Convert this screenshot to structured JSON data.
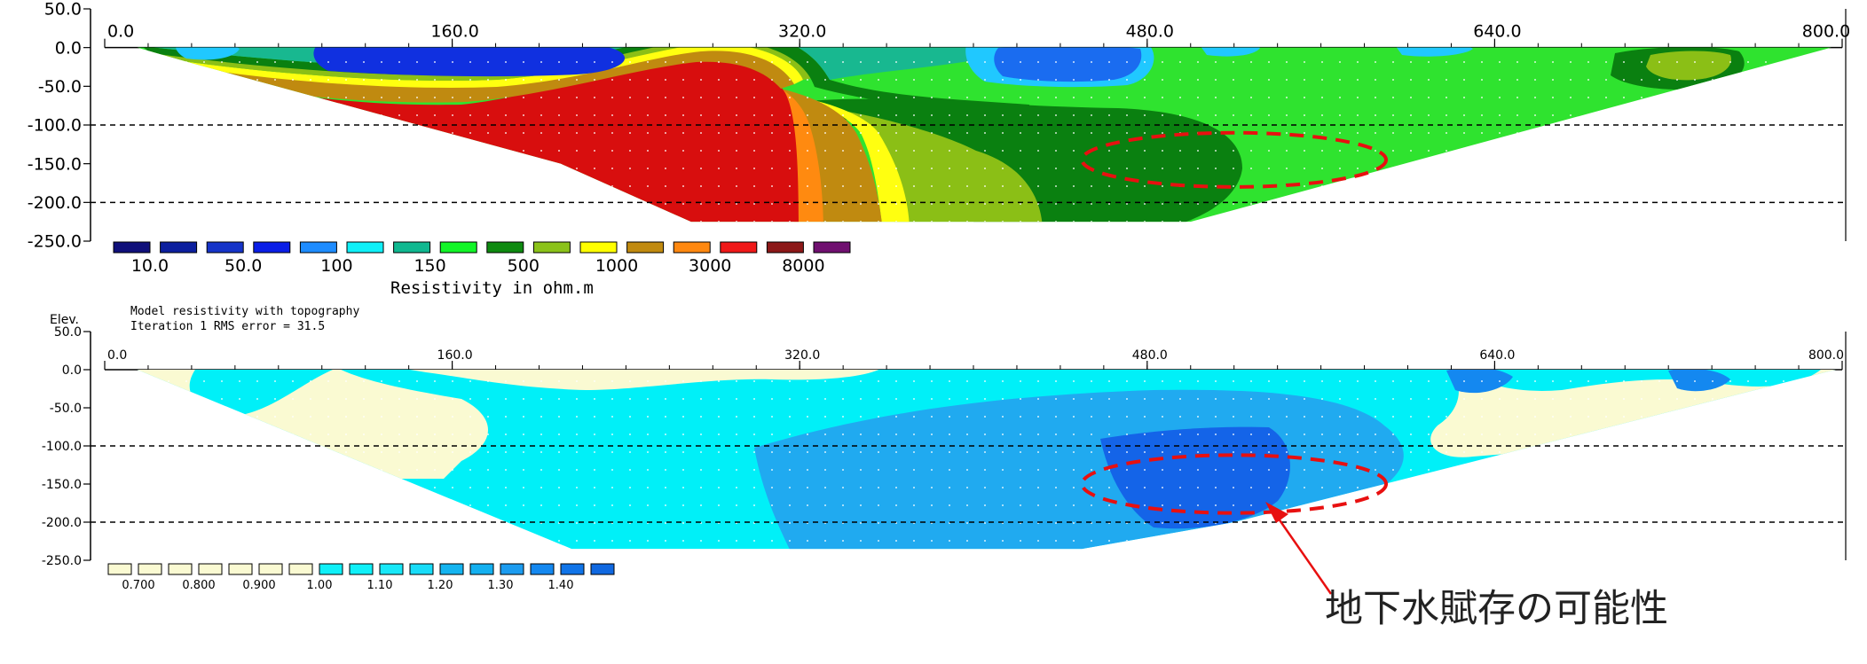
{
  "chart_data": [
    {
      "type": "heatmap",
      "name": "resistivity-section",
      "title": "",
      "x_ticks": [
        0,
        160,
        320,
        480,
        640,
        800
      ],
      "x_tick_labels": [
        "0.0",
        "160.0",
        "320.0",
        "480.0",
        "640.0",
        "800.0"
      ],
      "y_ticks": [
        50,
        0,
        -50,
        -100,
        -150,
        -200,
        -250
      ],
      "y_tick_labels": [
        "50.0",
        "0.0",
        "-50.0",
        "-100.0",
        "-150.0",
        "-200.0",
        "-250.0"
      ],
      "xlim": [
        0,
        800
      ],
      "ylim": [
        -250,
        50
      ],
      "reference_lines_y": [
        -100,
        -200
      ],
      "section_bottom_y": -225,
      "section_top_left_x": 15,
      "section_top_right_x": 795,
      "section_bottom_left_x": 270,
      "section_bottom_right_x": 500,
      "legend": {
        "colors": [
          "#10107a",
          "#0c1f9e",
          "#1634c8",
          "#0a1ee6",
          "#1e8cff",
          "#0ff0f8",
          "#10b890",
          "#12f528",
          "#0e8a10",
          "#8bc21a",
          "#ffff00",
          "#c08a10",
          "#ff8810",
          "#f01818",
          "#8c1818",
          "#701070"
        ],
        "labels": [
          "10.0",
          "50.0",
          "100",
          "150",
          "500",
          "1000",
          "3000",
          "8000"
        ],
        "title": "Resistivity in ohm.m"
      },
      "regions": [
        {
          "name": "base-green",
          "color": "#2fe32f"
        },
        {
          "name": "red-core",
          "color": "#d80e0e"
        },
        {
          "name": "orange-band",
          "color": "#ff8a10"
        },
        {
          "name": "brown-band",
          "color": "#c08a10"
        },
        {
          "name": "yellow-band",
          "color": "#ffff10"
        },
        {
          "name": "olive-band",
          "color": "#8bbf16"
        },
        {
          "name": "dark-green-zone",
          "color": "#0a8010"
        },
        {
          "name": "blue-shallow",
          "color": "#1030e0"
        },
        {
          "name": "cyan-shallow",
          "color": "#20c8ff"
        },
        {
          "name": "teal-shallow",
          "color": "#18b890"
        },
        {
          "name": "purple-tip",
          "color": "#701070"
        }
      ],
      "ellipse": {
        "cx": 520,
        "cy": -145,
        "rx": 70,
        "ry": 35,
        "color": "#e81010"
      }
    },
    {
      "type": "heatmap",
      "name": "ratio-section",
      "title": "",
      "header_lines": [
        "Model resistivity with topography",
        "Iteration 1 RMS error = 31.5"
      ],
      "ylabel": "Elev.",
      "x_ticks": [
        0,
        160,
        320,
        480,
        640,
        800
      ],
      "x_tick_labels": [
        "0.0",
        "160.0",
        "320.0",
        "480.0",
        "640.0",
        "800.0"
      ],
      "y_ticks": [
        50,
        0,
        -50,
        -100,
        -150,
        -200,
        -250
      ],
      "y_tick_labels": [
        "50.0",
        "0.0",
        "-50.0",
        "-100.0",
        "-150.0",
        "-200.0",
        "-250.0"
      ],
      "xlim": [
        0,
        800
      ],
      "ylim": [
        -250,
        50
      ],
      "reference_lines_y": [
        -100,
        -200
      ],
      "legend": {
        "colors": [
          "#fafad2",
          "#fafad2",
          "#fafad2",
          "#fafad2",
          "#fafad2",
          "#fafad2",
          "#fafad2",
          "#0ff0f8",
          "#10f0f8",
          "#18e8f8",
          "#18dcf8",
          "#14b4f0",
          "#14b0f0",
          "#1c9cf0",
          "#1488f0",
          "#1074e8",
          "#1068e0"
        ],
        "labels": [
          "0.700",
          "0.800",
          "0.900",
          "1.00",
          "1.10",
          "1.20",
          "1.30",
          "1.40"
        ]
      },
      "regions": [
        {
          "name": "cream-zone",
          "color": "#fafad2"
        },
        {
          "name": "cyan-zone",
          "color": "#00f0f8"
        },
        {
          "name": "light-blue-zone",
          "color": "#20aaf0"
        },
        {
          "name": "blue-core",
          "color": "#1464e8"
        }
      ],
      "ellipse": {
        "cx": 520,
        "cy": -150,
        "rx": 70,
        "ry": 38,
        "color": "#e81010"
      }
    }
  ],
  "annotation": {
    "text": "地下水賦存の可能性",
    "arrow_color": "#e81010"
  }
}
